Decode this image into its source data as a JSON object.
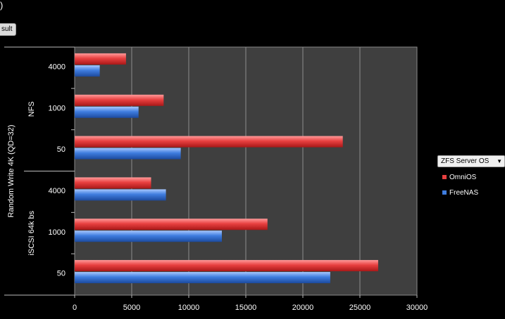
{
  "window": {
    "top_fragment": ")",
    "result_chip": "sult"
  },
  "legend": {
    "title": "ZFS Server OS",
    "dropdown_icon": "chevron-down-icon",
    "items": [
      {
        "label": "OmniOS",
        "color": "#e84040"
      },
      {
        "label": "FreeNAS",
        "color": "#3f7ddf"
      }
    ]
  },
  "chart_data": {
    "type": "bar",
    "orientation": "horizontal",
    "title": "",
    "outer_group_label": "Random Write 4K (QD=32)",
    "groups": [
      {
        "label": "NFS",
        "categories": [
          "4000",
          "1000",
          "50"
        ]
      },
      {
        "label": "iSCSI 64k bs",
        "categories": [
          "4000",
          "1000",
          "50"
        ]
      }
    ],
    "categories": [
      "4000",
      "1000",
      "50",
      "4000",
      "1000",
      "50"
    ],
    "series": [
      {
        "name": "OmniOS",
        "color": "#e84040",
        "values": [
          4500,
          7800,
          23500,
          6700,
          16900,
          26600
        ]
      },
      {
        "name": "FreeNAS",
        "color": "#3f7ddf",
        "values": [
          2200,
          5600,
          9300,
          8000,
          12900,
          22400
        ]
      }
    ],
    "x_ticks": [
      "0",
      "5000",
      "10000",
      "15000",
      "20000",
      "25000",
      "30000"
    ],
    "xlim": [
      0,
      30000
    ],
    "grid": true,
    "legend_position": "right"
  }
}
